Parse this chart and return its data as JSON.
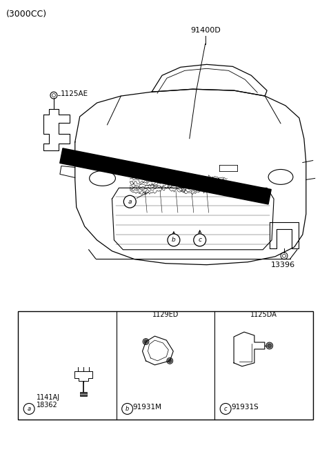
{
  "title": "(3000CC)",
  "bg_color": "#ffffff",
  "line_color": "#000000",
  "fig_width": 4.8,
  "fig_height": 6.55,
  "dpi": 100,
  "labels": {
    "part1": "91400D",
    "part2": "1125AE",
    "part3": "13396",
    "sub_a_top": "18362",
    "sub_a_bot": "1141AJ",
    "sub_b_top": "91931M",
    "sub_b_bot": "1129ED",
    "sub_c_top": "91931S",
    "sub_c_bot": "1125DA"
  },
  "circle_labels": [
    "a",
    "b",
    "c"
  ]
}
